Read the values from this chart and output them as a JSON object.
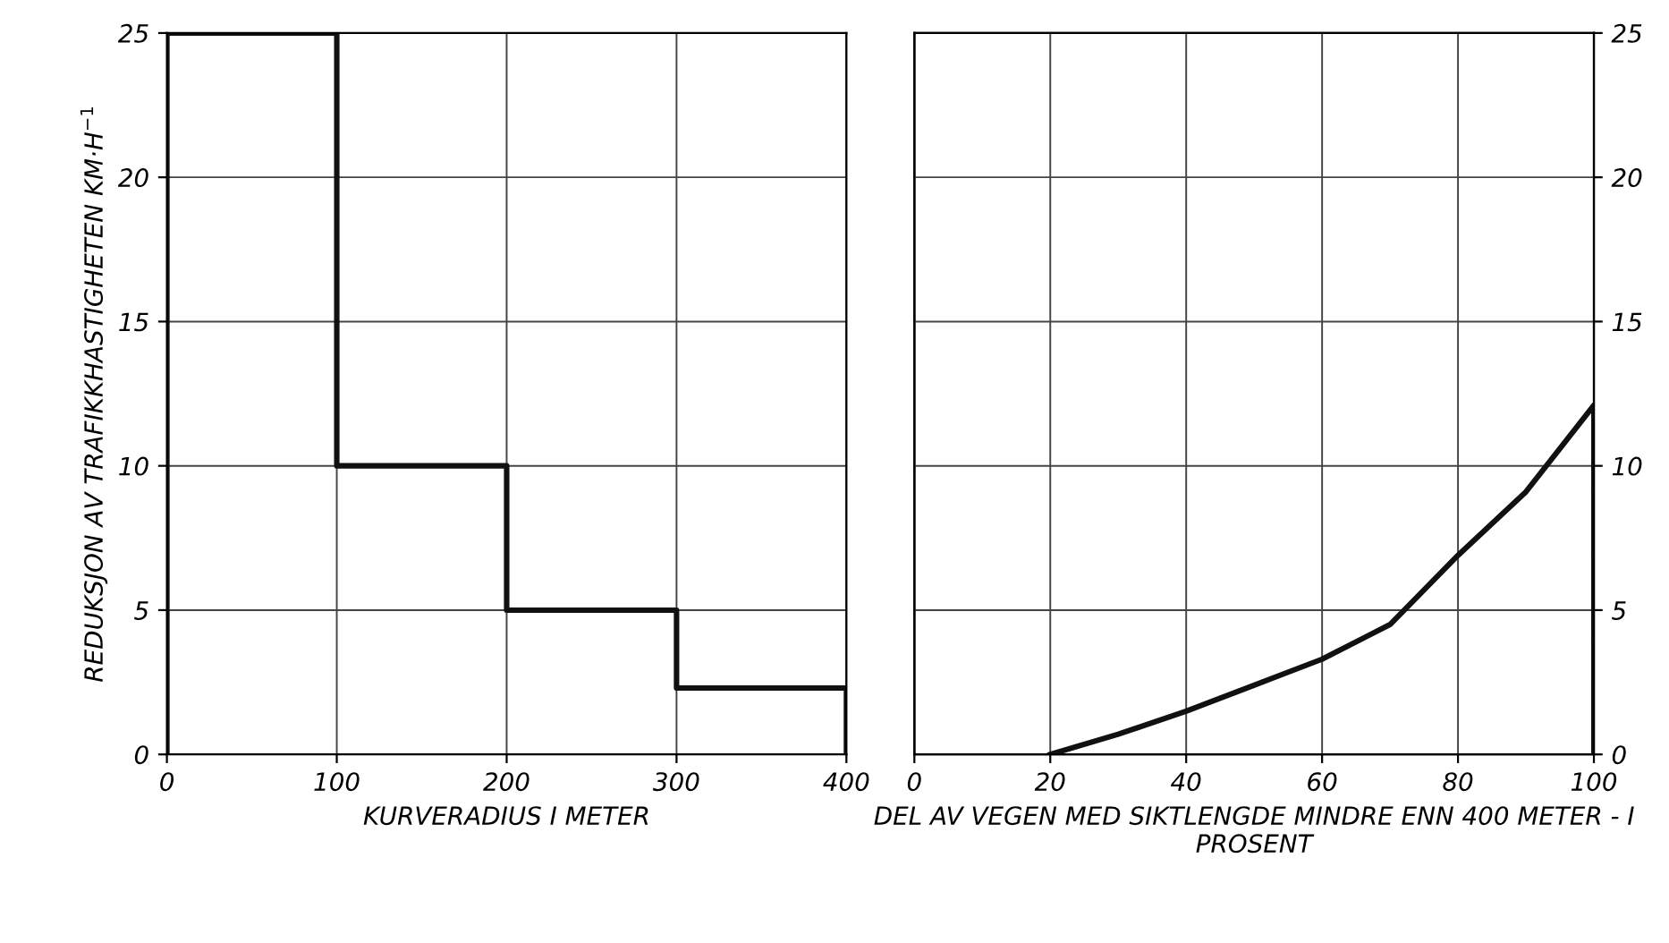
{
  "chart_data": [
    {
      "type": "step",
      "xlabel": "KURVERADIUS I METER",
      "ylabel": "REDUKSJON AV TRAFIKKHASTIGHETEN KM·H$^{−1}$",
      "x": [
        0,
        0,
        100,
        200,
        300,
        400
      ],
      "series": [
        {
          "color": "#111111",
          "values": [
            0,
            25,
            10,
            5,
            2.3,
            0
          ]
        }
      ],
      "xlim": [
        0,
        400
      ],
      "xticks": [
        0,
        100,
        200,
        300,
        400
      ],
      "ylim": [
        0,
        25
      ],
      "yticks": [
        0,
        5,
        10,
        15,
        20,
        25
      ],
      "grid": true,
      "line_style": "solid"
    },
    {
      "type": "line",
      "xlabel": "DEL AV VEGEN MED SIKTLENGDE MINDRE ENN 400 METER - I PROSENT",
      "x": [
        20,
        30,
        40,
        50,
        60,
        70,
        80,
        90,
        100,
        100
      ],
      "series": [
        {
          "color": "#111111",
          "axis": "y2",
          "values": [
            0,
            0.7,
            1.5,
            2.4,
            3.3,
            4.5,
            6.9,
            9.1,
            12.1,
            0
          ]
        }
      ],
      "xlim": [
        0,
        100
      ],
      "xticks": [
        0,
        20,
        40,
        60,
        80,
        100
      ],
      "y2lim": [
        0,
        25
      ],
      "y2ticks": [
        0,
        5,
        10,
        15,
        20,
        25
      ],
      "grid": true,
      "line_style": "solid"
    }
  ]
}
